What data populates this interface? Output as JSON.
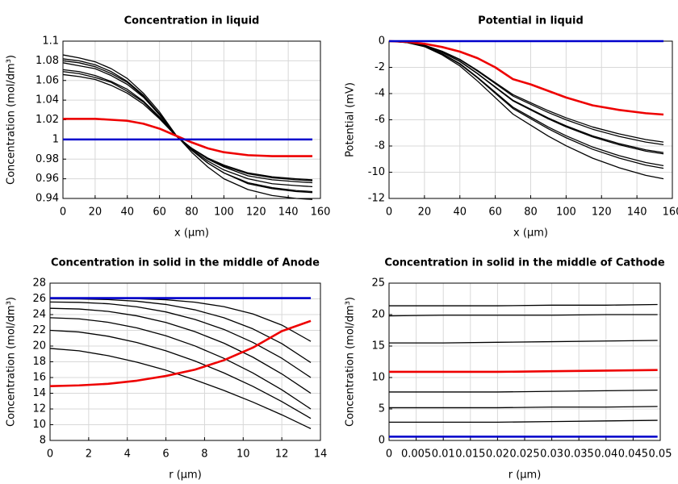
{
  "chart_data": [
    {
      "type": "line",
      "title": "Concentration in liquid",
      "xlabel": "x (µm)",
      "ylabel": "Concentration (mol/dm³)",
      "x": [
        0,
        10,
        20,
        30,
        40,
        50,
        60,
        70,
        80,
        90,
        100,
        115,
        130,
        145,
        155
      ],
      "xlim": [
        0,
        160
      ],
      "ylim": [
        0.94,
        1.1
      ],
      "xticks": [
        0,
        20,
        40,
        60,
        80,
        100,
        120,
        140,
        160
      ],
      "yticks": [
        0.94,
        0.96,
        0.98,
        1,
        1.02,
        1.04,
        1.06,
        1.08,
        1.1
      ],
      "grid": true,
      "series": [
        {
          "color": "#000000",
          "values": [
            1.086,
            1.083,
            1.079,
            1.072,
            1.062,
            1.047,
            1.028,
            1.005,
            0.987,
            0.972,
            0.96,
            0.949,
            0.943,
            0.94,
            0.939
          ]
        },
        {
          "color": "#000000",
          "values": [
            1.082,
            1.08,
            1.076,
            1.069,
            1.059,
            1.045,
            1.026,
            1.005,
            0.989,
            0.976,
            0.966,
            0.955,
            0.95,
            0.947,
            0.946
          ]
        },
        {
          "color": "#000000",
          "values": [
            1.08,
            1.078,
            1.074,
            1.067,
            1.058,
            1.044,
            1.026,
            1.004,
            0.989,
            0.976,
            0.966,
            0.956,
            0.951,
            0.948,
            0.947
          ]
        },
        {
          "color": "#000000",
          "values": [
            1.078,
            1.075,
            1.072,
            1.065,
            1.056,
            1.043,
            1.025,
            1.004,
            0.99,
            0.978,
            0.969,
            0.96,
            0.955,
            0.953,
            0.952
          ]
        },
        {
          "color": "#000000",
          "values": [
            1.071,
            1.069,
            1.065,
            1.059,
            1.051,
            1.039,
            1.023,
            1.004,
            0.991,
            0.98,
            0.972,
            0.963,
            0.959,
            0.957,
            0.956
          ]
        },
        {
          "color": "#000000",
          "values": [
            1.069,
            1.067,
            1.063,
            1.058,
            1.049,
            1.038,
            1.022,
            1.004,
            0.991,
            0.981,
            0.973,
            0.965,
            0.961,
            0.959,
            0.958
          ]
        },
        {
          "color": "#000000",
          "values": [
            1.066,
            1.064,
            1.061,
            1.055,
            1.047,
            1.036,
            1.021,
            1.004,
            0.991,
            0.981,
            0.974,
            0.966,
            0.962,
            0.96,
            0.959
          ]
        },
        {
          "color": "#ee0000",
          "values": [
            1.021,
            1.021,
            1.021,
            1.02,
            1.019,
            1.016,
            1.011,
            1.004,
            0.997,
            0.991,
            0.987,
            0.984,
            0.983,
            0.983,
            0.983
          ]
        },
        {
          "color": "#0000cc",
          "values": [
            1,
            1,
            1,
            1,
            1,
            1,
            1,
            1,
            1,
            1,
            1,
            1,
            1,
            1,
            1
          ]
        }
      ]
    },
    {
      "type": "line",
      "title": "Potential in liquid",
      "xlabel": "x (µm)",
      "ylabel": "Potential (mV)",
      "x": [
        0,
        10,
        20,
        30,
        40,
        50,
        60,
        70,
        80,
        90,
        100,
        115,
        130,
        145,
        155
      ],
      "xlim": [
        0,
        160
      ],
      "ylim": [
        -12,
        0
      ],
      "xticks": [
        0,
        20,
        40,
        60,
        80,
        100,
        120,
        140,
        160
      ],
      "yticks": [
        -12,
        -10,
        -8,
        -6,
        -4,
        -2,
        0
      ],
      "grid": true,
      "series": [
        {
          "color": "#000000",
          "values": [
            0,
            -0.08,
            -0.31,
            -0.77,
            -1.39,
            -2.23,
            -3.16,
            -4.08,
            -4.7,
            -5.31,
            -5.85,
            -6.55,
            -7.08,
            -7.51,
            -7.7
          ]
        },
        {
          "color": "#000000",
          "values": [
            0,
            -0.08,
            -0.32,
            -0.79,
            -1.42,
            -2.29,
            -3.24,
            -4.19,
            -4.82,
            -5.45,
            -6.0,
            -6.72,
            -7.27,
            -7.7,
            -7.9
          ]
        },
        {
          "color": "#000000",
          "values": [
            0,
            -0.09,
            -0.34,
            -0.85,
            -1.53,
            -2.47,
            -3.49,
            -4.51,
            -5.19,
            -5.87,
            -6.46,
            -7.23,
            -7.82,
            -8.29,
            -8.5
          ]
        },
        {
          "color": "#000000",
          "values": [
            0,
            -0.09,
            -0.34,
            -0.86,
            -1.55,
            -2.49,
            -3.53,
            -4.56,
            -5.25,
            -5.93,
            -6.54,
            -7.31,
            -7.91,
            -8.39,
            -8.6
          ]
        },
        {
          "color": "#000000",
          "values": [
            0,
            -0.1,
            -0.38,
            -0.95,
            -1.71,
            -2.76,
            -3.9,
            -5.04,
            -5.8,
            -6.56,
            -7.22,
            -8.08,
            -8.74,
            -9.26,
            -9.5
          ]
        },
        {
          "color": "#000000",
          "values": [
            0,
            -0.1,
            -0.39,
            -0.97,
            -1.75,
            -2.81,
            -3.98,
            -5.14,
            -5.92,
            -6.69,
            -7.37,
            -8.25,
            -8.92,
            -9.46,
            -9.7
          ]
        },
        {
          "color": "#000000",
          "values": [
            0,
            -0.11,
            -0.42,
            -1.05,
            -1.89,
            -3.05,
            -4.31,
            -5.57,
            -6.41,
            -7.25,
            -7.98,
            -8.93,
            -9.66,
            -10.24,
            -10.5
          ]
        },
        {
          "color": "#ee0000",
          "values": [
            0,
            -0.05,
            -0.2,
            -0.45,
            -0.8,
            -1.3,
            -2.0,
            -2.9,
            -3.3,
            -3.8,
            -4.3,
            -4.9,
            -5.25,
            -5.5,
            -5.6
          ]
        },
        {
          "color": "#0000cc",
          "values": [
            0,
            0,
            0,
            0,
            0,
            0,
            0,
            0,
            0,
            0,
            0,
            0,
            0,
            0,
            0
          ]
        }
      ]
    },
    {
      "type": "line",
      "title": "Concentration in solid in the middle of Anode",
      "xlabel": "r (µm)",
      "ylabel": "Concentration (mol/dm³)",
      "x": [
        0,
        1.5,
        3,
        4.5,
        6,
        7.5,
        9,
        10.5,
        12,
        13.5
      ],
      "xlim": [
        0,
        14
      ],
      "ylim": [
        8,
        28
      ],
      "xticks": [
        0,
        2,
        4,
        6,
        8,
        10,
        12,
        14
      ],
      "yticks": [
        8,
        10,
        12,
        14,
        16,
        18,
        20,
        22,
        24,
        26,
        28
      ],
      "grid": true,
      "series": [
        {
          "color": "#000000",
          "values": [
            26.1,
            26.1,
            26.09,
            26.03,
            25.89,
            25.58,
            25.01,
            24.09,
            22.67,
            20.6
          ]
        },
        {
          "color": "#000000",
          "values": [
            26.0,
            25.99,
            25.91,
            25.7,
            25.29,
            24.61,
            23.6,
            22.19,
            20.31,
            17.9
          ]
        },
        {
          "color": "#000000",
          "values": [
            25.6,
            25.56,
            25.38,
            24.99,
            24.34,
            23.39,
            22.12,
            20.47,
            18.45,
            16.0
          ]
        },
        {
          "color": "#000000",
          "values": [
            24.8,
            24.71,
            24.41,
            23.84,
            23.0,
            21.83,
            20.37,
            18.59,
            16.46,
            14.0
          ]
        },
        {
          "color": "#000000",
          "values": [
            23.6,
            23.46,
            23.03,
            22.31,
            21.31,
            20.02,
            18.44,
            16.58,
            14.44,
            12.0
          ]
        },
        {
          "color": "#000000",
          "values": [
            22.0,
            21.79,
            21.25,
            20.45,
            19.4,
            18.1,
            16.59,
            14.88,
            12.94,
            10.8
          ]
        },
        {
          "color": "#000000",
          "values": [
            19.7,
            19.4,
            18.78,
            17.95,
            16.93,
            15.71,
            14.36,
            12.88,
            11.26,
            9.5
          ]
        },
        {
          "color": "#ee0000",
          "values": [
            14.9,
            15.0,
            15.2,
            15.6,
            16.2,
            17.0,
            18.2,
            19.8,
            21.9,
            23.2
          ]
        },
        {
          "color": "#0000cc",
          "values": [
            26.1,
            26.1,
            26.1,
            26.1,
            26.1,
            26.1,
            26.1,
            26.1,
            26.1,
            26.1
          ]
        }
      ]
    },
    {
      "type": "line",
      "title": "Concentration in solid in the middle of Cathode",
      "xlabel": "r (µm)",
      "ylabel": "Concentration (mol/dm³)",
      "x": [
        0,
        0.01,
        0.02,
        0.03,
        0.04,
        0.0495
      ],
      "xlim": [
        0,
        0.05
      ],
      "ylim": [
        0,
        25
      ],
      "xticks": [
        0,
        0.005,
        0.01,
        0.015,
        0.02,
        0.025,
        0.03,
        0.035,
        0.04,
        0.045,
        0.05
      ],
      "yticks": [
        0,
        5,
        10,
        15,
        20,
        25
      ],
      "grid": true,
      "series": [
        {
          "color": "#000000",
          "values": [
            21.4,
            21.4,
            21.4,
            21.5,
            21.5,
            21.6
          ]
        },
        {
          "color": "#000000",
          "values": [
            19.8,
            19.9,
            19.9,
            19.9,
            20.0,
            20.0
          ]
        },
        {
          "color": "#000000",
          "values": [
            15.5,
            15.5,
            15.6,
            15.7,
            15.8,
            15.9
          ]
        },
        {
          "color": "#000000",
          "values": [
            7.7,
            7.7,
            7.7,
            7.8,
            7.9,
            8.0
          ]
        },
        {
          "color": "#000000",
          "values": [
            5.2,
            5.2,
            5.2,
            5.3,
            5.3,
            5.4
          ]
        },
        {
          "color": "#000000",
          "values": [
            2.9,
            2.9,
            2.9,
            3.0,
            3.1,
            3.2
          ]
        },
        {
          "color": "#ee0000",
          "values": [
            10.9,
            10.9,
            10.9,
            11.0,
            11.1,
            11.2
          ]
        },
        {
          "color": "#0000cc",
          "values": [
            0.6,
            0.6,
            0.6,
            0.6,
            0.6,
            0.6
          ]
        }
      ]
    }
  ]
}
